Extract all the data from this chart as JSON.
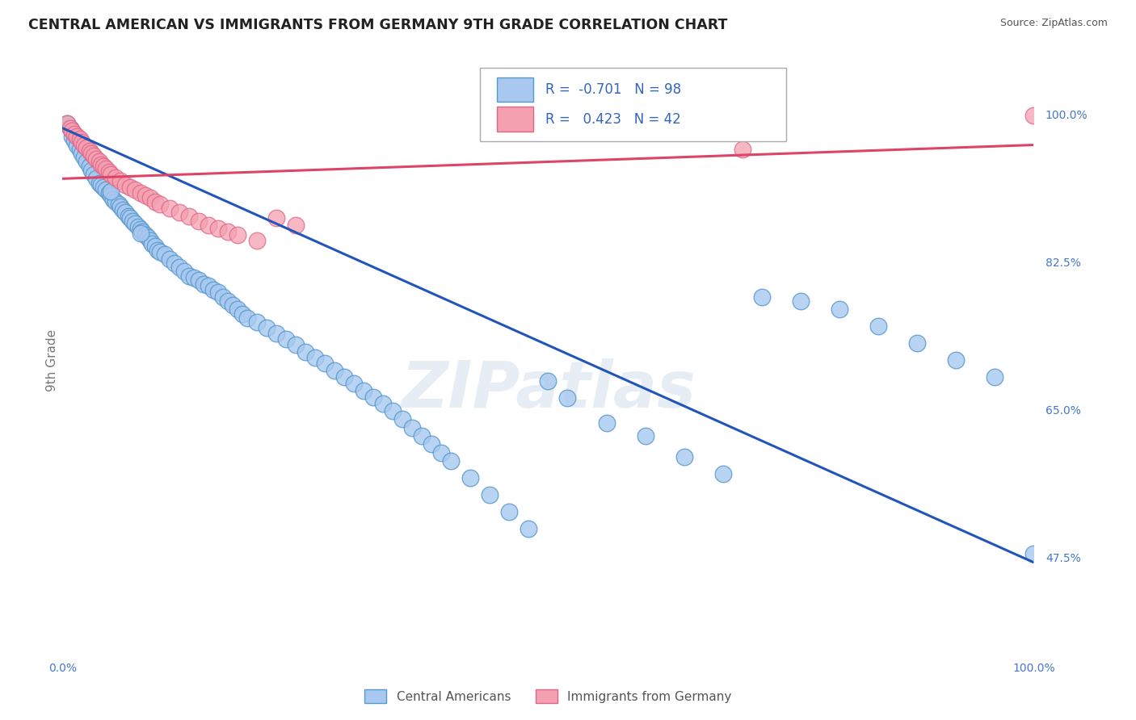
{
  "title": "CENTRAL AMERICAN VS IMMIGRANTS FROM GERMANY 9TH GRADE CORRELATION CHART",
  "source": "Source: ZipAtlas.com",
  "ylabel": "9th Grade",
  "right_yticks": [
    1.0,
    0.825,
    0.65,
    0.475
  ],
  "right_ytick_labels": [
    "100.0%",
    "82.5%",
    "65.0%",
    "47.5%"
  ],
  "watermark": "ZIPatlas",
  "legend_blue_r": "-0.701",
  "legend_blue_n": "98",
  "legend_pink_r": "0.423",
  "legend_pink_n": "42",
  "blue_color": "#a8c8f0",
  "blue_edge": "#5599cc",
  "pink_color": "#f5a0b0",
  "pink_edge": "#dd6688",
  "blue_line_color": "#2255bb",
  "pink_line_color": "#dd4466",
  "title_color": "#222222",
  "source_color": "#555555",
  "axis_label_color": "#4477cc",
  "grid_color": "#cccccc",
  "background_color": "#ffffff",
  "xlim": [
    0,
    1
  ],
  "ylim": [
    0.36,
    1.06
  ],
  "blue_line_y0": 0.985,
  "blue_line_y1": 0.47,
  "pink_line_y0": 0.925,
  "pink_line_y1": 0.965,
  "blue_scatter_x": [
    0.005,
    0.008,
    0.01,
    0.012,
    0.015,
    0.018,
    0.02,
    0.022,
    0.025,
    0.028,
    0.03,
    0.032,
    0.035,
    0.038,
    0.04,
    0.042,
    0.045,
    0.048,
    0.05,
    0.052,
    0.055,
    0.058,
    0.06,
    0.062,
    0.065,
    0.068,
    0.07,
    0.072,
    0.075,
    0.078,
    0.08,
    0.082,
    0.085,
    0.088,
    0.09,
    0.092,
    0.095,
    0.098,
    0.1,
    0.105,
    0.11,
    0.115,
    0.12,
    0.125,
    0.13,
    0.135,
    0.14,
    0.145,
    0.15,
    0.155,
    0.16,
    0.165,
    0.17,
    0.175,
    0.18,
    0.185,
    0.19,
    0.2,
    0.21,
    0.22,
    0.23,
    0.24,
    0.25,
    0.26,
    0.27,
    0.28,
    0.29,
    0.3,
    0.31,
    0.32,
    0.33,
    0.34,
    0.35,
    0.36,
    0.37,
    0.38,
    0.39,
    0.4,
    0.42,
    0.44,
    0.46,
    0.48,
    0.5,
    0.52,
    0.56,
    0.6,
    0.64,
    0.68,
    0.72,
    0.76,
    0.8,
    0.84,
    0.88,
    0.92,
    0.96,
    1.0,
    0.05,
    0.08
  ],
  "blue_scatter_y": [
    0.99,
    0.985,
    0.975,
    0.97,
    0.965,
    0.96,
    0.955,
    0.95,
    0.945,
    0.94,
    0.935,
    0.93,
    0.925,
    0.92,
    0.918,
    0.915,
    0.912,
    0.908,
    0.905,
    0.9,
    0.898,
    0.895,
    0.892,
    0.888,
    0.885,
    0.88,
    0.878,
    0.875,
    0.872,
    0.868,
    0.865,
    0.862,
    0.858,
    0.855,
    0.852,
    0.848,
    0.845,
    0.84,
    0.838,
    0.835,
    0.83,
    0.825,
    0.82,
    0.815,
    0.81,
    0.808,
    0.805,
    0.8,
    0.798,
    0.793,
    0.79,
    0.785,
    0.78,
    0.775,
    0.77,
    0.765,
    0.76,
    0.755,
    0.748,
    0.742,
    0.735,
    0.728,
    0.72,
    0.713,
    0.706,
    0.698,
    0.69,
    0.682,
    0.674,
    0.666,
    0.658,
    0.65,
    0.64,
    0.63,
    0.62,
    0.61,
    0.6,
    0.59,
    0.57,
    0.55,
    0.53,
    0.51,
    0.685,
    0.665,
    0.635,
    0.62,
    0.595,
    0.575,
    0.785,
    0.78,
    0.77,
    0.75,
    0.73,
    0.71,
    0.69,
    0.48,
    0.91,
    0.86
  ],
  "pink_scatter_x": [
    0.005,
    0.008,
    0.01,
    0.012,
    0.015,
    0.018,
    0.02,
    0.022,
    0.025,
    0.028,
    0.03,
    0.032,
    0.035,
    0.038,
    0.04,
    0.042,
    0.045,
    0.048,
    0.05,
    0.055,
    0.06,
    0.065,
    0.07,
    0.075,
    0.08,
    0.085,
    0.09,
    0.095,
    0.1,
    0.11,
    0.12,
    0.13,
    0.14,
    0.15,
    0.16,
    0.17,
    0.18,
    0.2,
    0.22,
    0.24,
    0.7,
    1.0
  ],
  "pink_scatter_y": [
    0.99,
    0.985,
    0.982,
    0.978,
    0.975,
    0.972,
    0.968,
    0.965,
    0.962,
    0.958,
    0.955,
    0.952,
    0.948,
    0.945,
    0.942,
    0.94,
    0.937,
    0.933,
    0.93,
    0.926,
    0.922,
    0.918,
    0.915,
    0.912,
    0.908,
    0.905,
    0.902,
    0.898,
    0.895,
    0.89,
    0.885,
    0.88,
    0.875,
    0.87,
    0.866,
    0.862,
    0.858,
    0.852,
    0.878,
    0.87,
    0.96,
    1.0
  ]
}
